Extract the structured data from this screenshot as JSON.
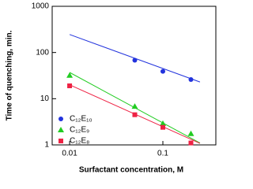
{
  "chart_data": {
    "type": "scatter",
    "x_label": "Surfactant concentration, M",
    "y_label": "Time of quenching, min.",
    "xscale": "log",
    "yscale": "log",
    "xlim": [
      0.0065,
      0.37
    ],
    "ylim": [
      1,
      1000
    ],
    "xticks": [
      0.01,
      0.1
    ],
    "yticks": [
      1,
      10,
      100,
      1000
    ],
    "legend": "lower left",
    "fit_x": [
      0.01,
      0.25
    ],
    "series": [
      {
        "name": "C₁₂E₁₀",
        "color": "#2233dd",
        "marker": "circle",
        "x": [
          0.05,
          0.1,
          0.2
        ],
        "values": [
          68,
          39,
          26
        ],
        "fit": [
          245,
          23
        ]
      },
      {
        "name": "C₁₂E₉",
        "color": "#22cc22",
        "marker": "triangle",
        "x": [
          0.01,
          0.05,
          0.1,
          0.2
        ],
        "values": [
          32,
          6.8,
          2.9,
          1.75
        ],
        "fit": [
          37,
          1.1
        ]
      },
      {
        "name": "C₁₂E₈",
        "color": "#ee2244",
        "marker": "square",
        "x": [
          0.01,
          0.05,
          0.1,
          0.2
        ],
        "values": [
          19,
          4.5,
          2.4,
          1.1
        ],
        "fit": [
          20,
          1.08
        ]
      }
    ]
  }
}
